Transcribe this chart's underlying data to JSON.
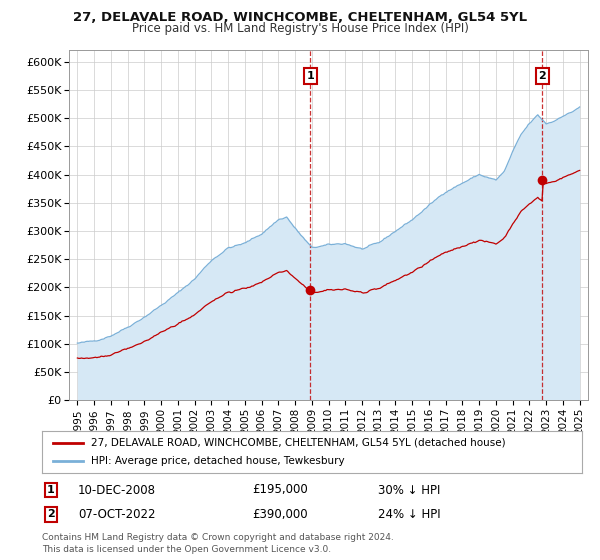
{
  "title": "27, DELAVALE ROAD, WINCHCOMBE, CHELTENHAM, GL54 5YL",
  "subtitle": "Price paid vs. HM Land Registry's House Price Index (HPI)",
  "hpi_label": "HPI: Average price, detached house, Tewkesbury",
  "property_label": "27, DELAVALE ROAD, WINCHCOMBE, CHELTENHAM, GL54 5YL (detached house)",
  "hpi_color": "#7ab0d8",
  "property_color": "#c00000",
  "hpi_fill_color": "#d6e8f5",
  "sale1_date_x": 2008.92,
  "sale1_price": 195000,
  "sale1_label": "1",
  "sale1_text": "10-DEC-2008",
  "sale1_pct": "30% ↓ HPI",
  "sale2_date_x": 2022.77,
  "sale2_price": 390000,
  "sale2_label": "2",
  "sale2_text": "07-OCT-2022",
  "sale2_pct": "24% ↓ HPI",
  "ylim_min": 0,
  "ylim_max": 620000,
  "xlim_min": 1994.5,
  "xlim_max": 2025.5,
  "yticks": [
    0,
    50000,
    100000,
    150000,
    200000,
    250000,
    300000,
    350000,
    400000,
    450000,
    500000,
    550000,
    600000
  ],
  "ytick_labels": [
    "£0",
    "£50K",
    "£100K",
    "£150K",
    "£200K",
    "£250K",
    "£300K",
    "£350K",
    "£400K",
    "£450K",
    "£500K",
    "£550K",
    "£600K"
  ],
  "xticks": [
    1995,
    1996,
    1997,
    1998,
    1999,
    2000,
    2001,
    2002,
    2003,
    2004,
    2005,
    2006,
    2007,
    2008,
    2009,
    2010,
    2011,
    2012,
    2013,
    2014,
    2015,
    2016,
    2017,
    2018,
    2019,
    2020,
    2021,
    2022,
    2023,
    2024,
    2025
  ],
  "footnote": "Contains HM Land Registry data © Crown copyright and database right 2024.\nThis data is licensed under the Open Government Licence v3.0.",
  "background_color": "#ffffff",
  "grid_color": "#cccccc",
  "hpi_anchors_x": [
    1995.0,
    1996.0,
    1997.0,
    1998.0,
    1999.0,
    2000.0,
    2001.0,
    2002.0,
    2003.0,
    2004.0,
    2005.0,
    2006.0,
    2007.0,
    2007.5,
    2008.0,
    2009.0,
    2010.0,
    2011.0,
    2012.0,
    2013.0,
    2014.0,
    2015.0,
    2016.0,
    2017.0,
    2018.0,
    2019.0,
    2020.0,
    2020.5,
    2021.0,
    2021.5,
    2022.0,
    2022.5,
    2023.0,
    2023.5,
    2024.0,
    2024.5,
    2025.0
  ],
  "hpi_anchors_y": [
    100000,
    105000,
    115000,
    130000,
    148000,
    168000,
    190000,
    215000,
    248000,
    270000,
    278000,
    295000,
    320000,
    325000,
    305000,
    270000,
    275000,
    278000,
    268000,
    278000,
    300000,
    320000,
    345000,
    370000,
    385000,
    400000,
    390000,
    405000,
    440000,
    470000,
    490000,
    505000,
    490000,
    495000,
    505000,
    510000,
    520000
  ]
}
